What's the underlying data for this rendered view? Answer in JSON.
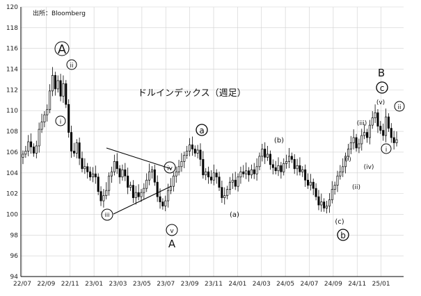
{
  "source_label": "出所：Bloomberg",
  "chart_data": {
    "type": "candlestick",
    "title": "ドルインデックス（週足）",
    "ylim": [
      94,
      120
    ],
    "y_ticks": [
      94,
      96,
      98,
      100,
      102,
      104,
      106,
      108,
      110,
      112,
      114,
      116,
      118,
      120
    ],
    "x_tick_labels": [
      "22/07",
      "22/09",
      "22/11",
      "23/01",
      "23/03",
      "23/05",
      "23/07",
      "23/09",
      "23/11",
      "24/01",
      "24/03",
      "24/05",
      "24/07",
      "24/09",
      "24/11",
      "25/01"
    ],
    "grid": true,
    "colors": {
      "up": "#ffffff",
      "down": "#000000",
      "outline": "#000000",
      "grid": "#cfcfcf"
    },
    "closes": [
      105.8,
      106.1,
      107.0,
      106.5,
      105.9,
      106.6,
      108.2,
      108.9,
      109.6,
      110.1,
      111.9,
      113.4,
      112.1,
      112.9,
      111.4,
      112.6,
      110.6,
      107.9,
      106.1,
      105.9,
      106.9,
      105.4,
      104.4,
      104.6,
      104.1,
      103.6,
      103.9,
      103.6,
      102.2,
      101.3,
      101.8,
      102.3,
      103.7,
      104.1,
      105.1,
      104.4,
      103.6,
      104.3,
      103.7,
      102.6,
      102.8,
      101.6,
      102.1,
      101.7,
      102.1,
      102.5,
      103.3,
      104.1,
      104.3,
      103.1,
      101.7,
      101.2,
      100.8,
      101.3,
      102.3,
      102.7,
      103.7,
      104.1,
      104.6,
      105.1,
      105.7,
      106.1,
      106.7,
      106.3,
      105.9,
      106.2,
      105.3,
      103.8,
      104.1,
      103.6,
      103.3,
      104.0,
      103.6,
      102.6,
      101.6,
      101.8,
      102.4,
      103.1,
      103.3,
      102.7,
      103.6,
      104.1,
      103.9,
      104.2,
      103.8,
      104.3,
      103.9,
      104.6,
      105.6,
      106.3,
      105.5,
      105.8,
      104.8,
      104.5,
      104.2,
      104.7,
      104.1,
      104.9,
      105.1,
      105.6,
      105.3,
      104.4,
      104.7,
      104.1,
      104.3,
      103.3,
      102.8,
      103.1,
      102.5,
      101.7,
      100.9,
      101.2,
      100.6,
      100.8,
      101.4,
      102.4,
      102.8,
      103.7,
      104.1,
      104.6,
      105.6,
      106.3,
      106.9,
      107.4,
      106.4,
      106.8,
      107.6,
      107.9,
      107.4,
      108.6,
      109.3,
      109.8,
      108.5,
      108.1,
      107.6,
      109.4,
      108.3,
      107.4,
      106.9,
      107.2
    ]
  },
  "annotations": {
    "A_circled": "A",
    "i": "i",
    "ii": "ii",
    "iii": "iii",
    "iv": "iv",
    "v": "v",
    "A_plain": "A",
    "a_circled": "a",
    "b_paren": "(b)",
    "a_paren": "(a)",
    "c_paren": "(c)",
    "b_circled": "b",
    "B_plain": "B",
    "c_circled": "c",
    "v_paren": "(v)",
    "iii_paren": "(iii)",
    "i_paren": "(i)",
    "ii_paren": "(ii)",
    "iv_paren": "(iv)",
    "i_right": "i",
    "ii_right": "ii"
  }
}
